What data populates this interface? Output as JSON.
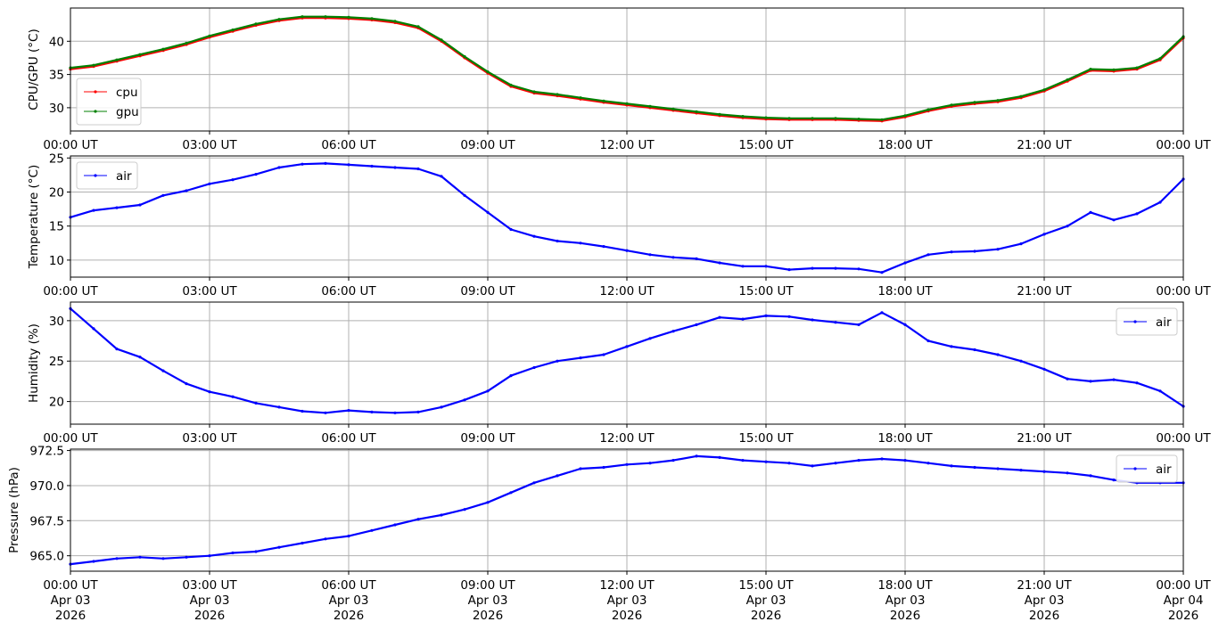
{
  "chart_data": [
    {
      "type": "line",
      "ylabel": "CPU/GPU (°C)",
      "ylim": [
        26.5,
        45
      ],
      "yticks": [
        30,
        35,
        40
      ],
      "ytick_labels": [
        "30",
        "35",
        "40"
      ],
      "grid": true,
      "legend_position": "lower-left",
      "x_unit": "hours",
      "xlim": [
        0,
        24
      ],
      "xtick_labels": [
        "00:00 UT",
        "03:00 UT",
        "06:00 UT",
        "09:00 UT",
        "12:00 UT",
        "15:00 UT",
        "18:00 UT",
        "21:00 UT",
        "00:00 UT"
      ],
      "series": [
        {
          "name": "cpu",
          "color": "#ff0000",
          "x": [
            0,
            0.5,
            1,
            1.5,
            2,
            2.5,
            3,
            3.5,
            4,
            4.5,
            5,
            5.5,
            6,
            6.5,
            7,
            7.5,
            8,
            8.5,
            9,
            9.5,
            10,
            10.5,
            11,
            11.5,
            12,
            12.5,
            13,
            13.5,
            14,
            14.5,
            15,
            15.5,
            16,
            16.5,
            17,
            17.5,
            18,
            18.5,
            19,
            19.5,
            20,
            20.5,
            21,
            21.5,
            22,
            22.5,
            23,
            23.5,
            24
          ],
          "y": [
            35.8,
            36.2,
            37.0,
            37.8,
            38.6,
            39.5,
            40.6,
            41.5,
            42.4,
            43.1,
            43.5,
            43.5,
            43.4,
            43.2,
            42.8,
            42.0,
            40.0,
            37.5,
            35.2,
            33.2,
            32.2,
            31.8,
            31.3,
            30.8,
            30.4,
            30.0,
            29.6,
            29.2,
            28.8,
            28.5,
            28.3,
            28.2,
            28.2,
            28.2,
            28.1,
            28.0,
            28.6,
            29.5,
            30.2,
            30.6,
            30.9,
            31.5,
            32.5,
            34.0,
            35.6,
            35.5,
            35.8,
            37.2,
            40.5
          ]
        },
        {
          "name": "gpu",
          "color": "#008000",
          "x": [
            0,
            0.5,
            1,
            1.5,
            2,
            2.5,
            3,
            3.5,
            4,
            4.5,
            5,
            5.5,
            6,
            6.5,
            7,
            7.5,
            8,
            8.5,
            9,
            9.5,
            10,
            10.5,
            11,
            11.5,
            12,
            12.5,
            13,
            13.5,
            14,
            14.5,
            15,
            15.5,
            16,
            16.5,
            17,
            17.5,
            18,
            18.5,
            19,
            19.5,
            20,
            20.5,
            21,
            21.5,
            22,
            22.5,
            23,
            23.5,
            24
          ],
          "y": [
            36.0,
            36.4,
            37.2,
            38.0,
            38.8,
            39.7,
            40.8,
            41.7,
            42.6,
            43.3,
            43.7,
            43.7,
            43.6,
            43.4,
            43.0,
            42.2,
            40.2,
            37.7,
            35.4,
            33.4,
            32.4,
            32.0,
            31.5,
            31.0,
            30.6,
            30.2,
            29.8,
            29.4,
            29.0,
            28.7,
            28.5,
            28.4,
            28.4,
            28.4,
            28.3,
            28.2,
            28.8,
            29.7,
            30.4,
            30.8,
            31.1,
            31.7,
            32.7,
            34.2,
            35.8,
            35.7,
            36.0,
            37.4,
            40.7
          ]
        }
      ]
    },
    {
      "type": "line",
      "ylabel": "Temperature (°C)",
      "ylim": [
        7.5,
        25.3
      ],
      "yticks": [
        10,
        15,
        20,
        25
      ],
      "ytick_labels": [
        "10",
        "15",
        "20",
        "25"
      ],
      "grid": true,
      "legend_position": "upper-left",
      "x_unit": "hours",
      "xlim": [
        0,
        24
      ],
      "xtick_labels": [
        "00:00 UT",
        "03:00 UT",
        "06:00 UT",
        "09:00 UT",
        "12:00 UT",
        "15:00 UT",
        "18:00 UT",
        "21:00 UT",
        "00:00 UT"
      ],
      "series": [
        {
          "name": "air",
          "color": "#0000ff",
          "x": [
            0,
            0.5,
            1,
            1.5,
            2,
            2.5,
            3,
            3.5,
            4,
            4.5,
            5,
            5.5,
            6,
            6.5,
            7,
            7.5,
            8,
            8.5,
            9,
            9.5,
            10,
            10.5,
            11,
            11.5,
            12,
            12.5,
            13,
            13.5,
            14,
            14.5,
            15,
            15.5,
            16,
            16.5,
            17,
            17.5,
            18,
            18.5,
            19,
            19.5,
            20,
            20.5,
            21,
            21.5,
            22,
            22.5,
            23,
            23.5,
            24
          ],
          "y": [
            16.3,
            17.3,
            17.7,
            18.1,
            19.5,
            20.2,
            21.2,
            21.8,
            22.6,
            23.6,
            24.1,
            24.2,
            24.0,
            23.8,
            23.6,
            23.4,
            22.3,
            19.5,
            17.0,
            14.5,
            13.5,
            12.8,
            12.5,
            12.0,
            11.4,
            10.8,
            10.4,
            10.2,
            9.6,
            9.1,
            9.1,
            8.6,
            8.8,
            8.8,
            8.7,
            8.2,
            9.6,
            10.8,
            11.2,
            11.3,
            11.6,
            12.4,
            13.8,
            15.0,
            17.0,
            15.9,
            16.8,
            18.5,
            21.9
          ]
        }
      ]
    },
    {
      "type": "line",
      "ylabel": "Humidity (%)",
      "ylim": [
        17.2,
        32.3
      ],
      "yticks": [
        20,
        25,
        30
      ],
      "ytick_labels": [
        "20",
        "25",
        "30"
      ],
      "grid": true,
      "legend_position": "upper-right",
      "x_unit": "hours",
      "xlim": [
        0,
        24
      ],
      "xtick_labels": [
        "00:00 UT",
        "03:00 UT",
        "06:00 UT",
        "09:00 UT",
        "12:00 UT",
        "15:00 UT",
        "18:00 UT",
        "21:00 UT",
        "00:00 UT"
      ],
      "series": [
        {
          "name": "air",
          "color": "#0000ff",
          "x": [
            0,
            0.5,
            1,
            1.5,
            2,
            2.5,
            3,
            3.5,
            4,
            4.5,
            5,
            5.5,
            6,
            6.5,
            7,
            7.5,
            8,
            8.5,
            9,
            9.5,
            10,
            10.5,
            11,
            11.5,
            12,
            12.5,
            13,
            13.5,
            14,
            14.5,
            15,
            15.5,
            16,
            16.5,
            17,
            17.5,
            18,
            18.5,
            19,
            19.5,
            20,
            20.5,
            21,
            21.5,
            22,
            22.5,
            23,
            23.5,
            24
          ],
          "y": [
            31.5,
            29.0,
            26.5,
            25.5,
            23.8,
            22.2,
            21.2,
            20.6,
            19.8,
            19.3,
            18.8,
            18.6,
            18.9,
            18.7,
            18.6,
            18.7,
            19.3,
            20.2,
            21.3,
            23.2,
            24.2,
            25.0,
            25.4,
            25.8,
            26.8,
            27.8,
            28.7,
            29.5,
            30.4,
            30.2,
            30.6,
            30.5,
            30.1,
            29.8,
            29.5,
            31.0,
            29.5,
            27.5,
            26.8,
            26.4,
            25.8,
            25.0,
            24.0,
            22.8,
            22.5,
            22.7,
            22.3,
            21.3,
            19.4
          ]
        }
      ]
    },
    {
      "type": "line",
      "ylabel": "Pressure (hPa)",
      "ylim": [
        963.9,
        972.6
      ],
      "yticks": [
        965.0,
        967.5,
        970.0,
        972.5
      ],
      "ytick_labels": [
        "965.0",
        "967.5",
        "970.0",
        "972.5"
      ],
      "grid": true,
      "legend_position": "upper-right",
      "x_unit": "hours",
      "xlim": [
        0,
        24
      ],
      "xtick_labels": [
        "00:00 UT\nApr 03\n2026",
        "03:00 UT\nApr 03\n2026",
        "06:00 UT\nApr 03\n2026",
        "09:00 UT\nApr 03\n2026",
        "12:00 UT\nApr 03\n2026",
        "15:00 UT\nApr 03\n2026",
        "18:00 UT\nApr 03\n2026",
        "21:00 UT\nApr 03\n2026",
        "00:00 UT\nApr 04\n2026"
      ],
      "series": [
        {
          "name": "air",
          "color": "#0000ff",
          "x": [
            0,
            0.5,
            1,
            1.5,
            2,
            2.5,
            3,
            3.5,
            4,
            4.5,
            5,
            5.5,
            6,
            6.5,
            7,
            7.5,
            8,
            8.5,
            9,
            9.5,
            10,
            10.5,
            11,
            11.5,
            12,
            12.5,
            13,
            13.5,
            14,
            14.5,
            15,
            15.5,
            16,
            16.5,
            17,
            17.5,
            18,
            18.5,
            19,
            19.5,
            20,
            20.5,
            21,
            21.5,
            22,
            22.5,
            23,
            23.5,
            24
          ],
          "y": [
            964.4,
            964.6,
            964.8,
            964.9,
            964.8,
            964.9,
            965.0,
            965.2,
            965.3,
            965.6,
            965.9,
            966.2,
            966.4,
            966.8,
            967.2,
            967.6,
            967.9,
            968.3,
            968.8,
            969.5,
            970.2,
            970.7,
            971.2,
            971.3,
            971.5,
            971.6,
            971.8,
            972.1,
            972.0,
            971.8,
            971.7,
            971.6,
            971.4,
            971.6,
            971.8,
            971.9,
            971.8,
            971.6,
            971.4,
            971.3,
            971.2,
            971.1,
            971.0,
            970.9,
            970.7,
            970.4,
            970.2,
            970.2,
            970.2
          ]
        }
      ]
    }
  ]
}
